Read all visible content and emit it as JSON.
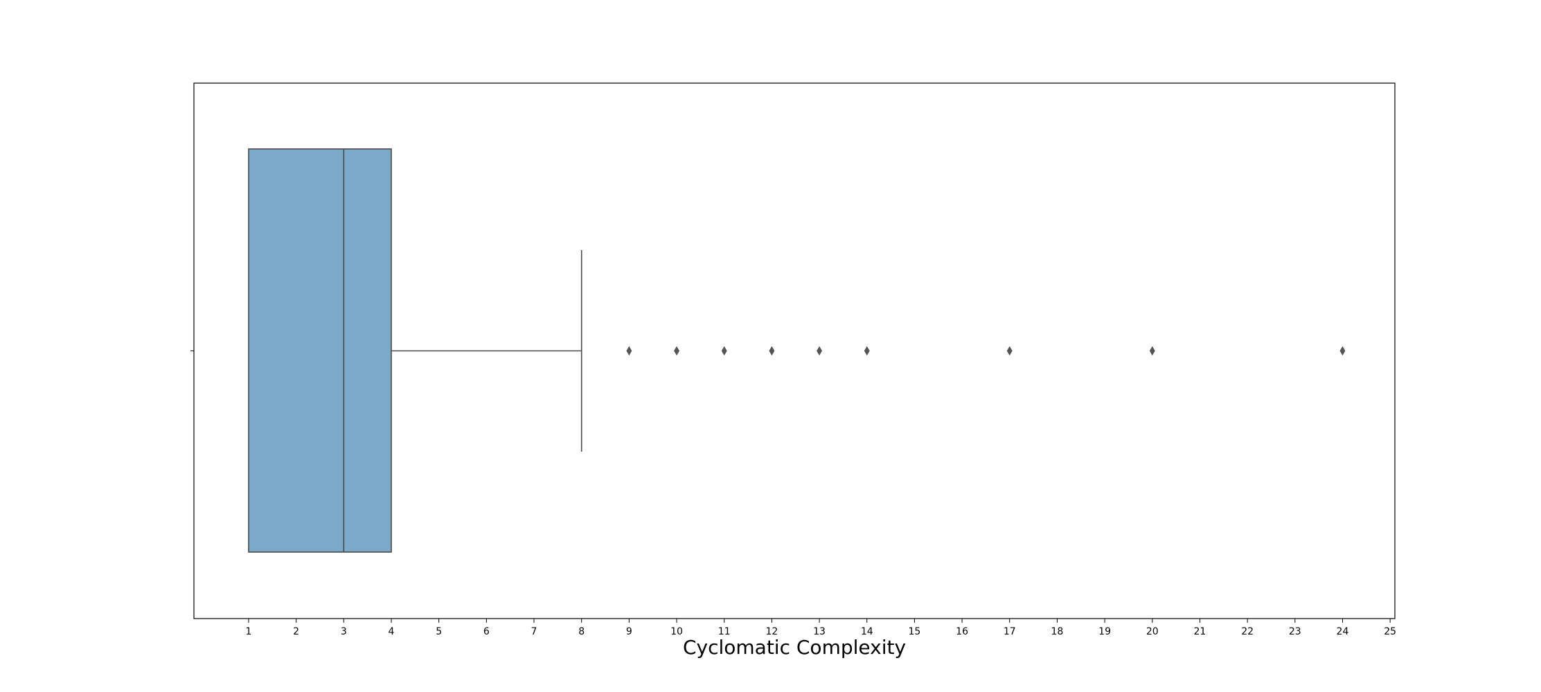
{
  "chart_data": {
    "type": "boxplot",
    "orientation": "horizontal",
    "xlabel": "Cyclomatic Complexity",
    "ylabel": "",
    "title": "",
    "xlim": [
      -0.15,
      25.1
    ],
    "x_ticks": [
      1,
      2,
      3,
      4,
      5,
      6,
      7,
      8,
      9,
      10,
      11,
      12,
      13,
      14,
      15,
      16,
      17,
      18,
      19,
      20,
      21,
      22,
      23,
      24,
      25
    ],
    "grid": false,
    "box": {
      "min": 1,
      "q1": 1,
      "median": 3,
      "q3": 4,
      "whisker_high": 8,
      "outliers": [
        9,
        10,
        11,
        12,
        13,
        14,
        17,
        20,
        24
      ]
    },
    "colors": {
      "box_fill": "#7aa9c9",
      "box_edge": "#4a4a4a",
      "outlier": "#555555",
      "axes": "#000000"
    }
  }
}
